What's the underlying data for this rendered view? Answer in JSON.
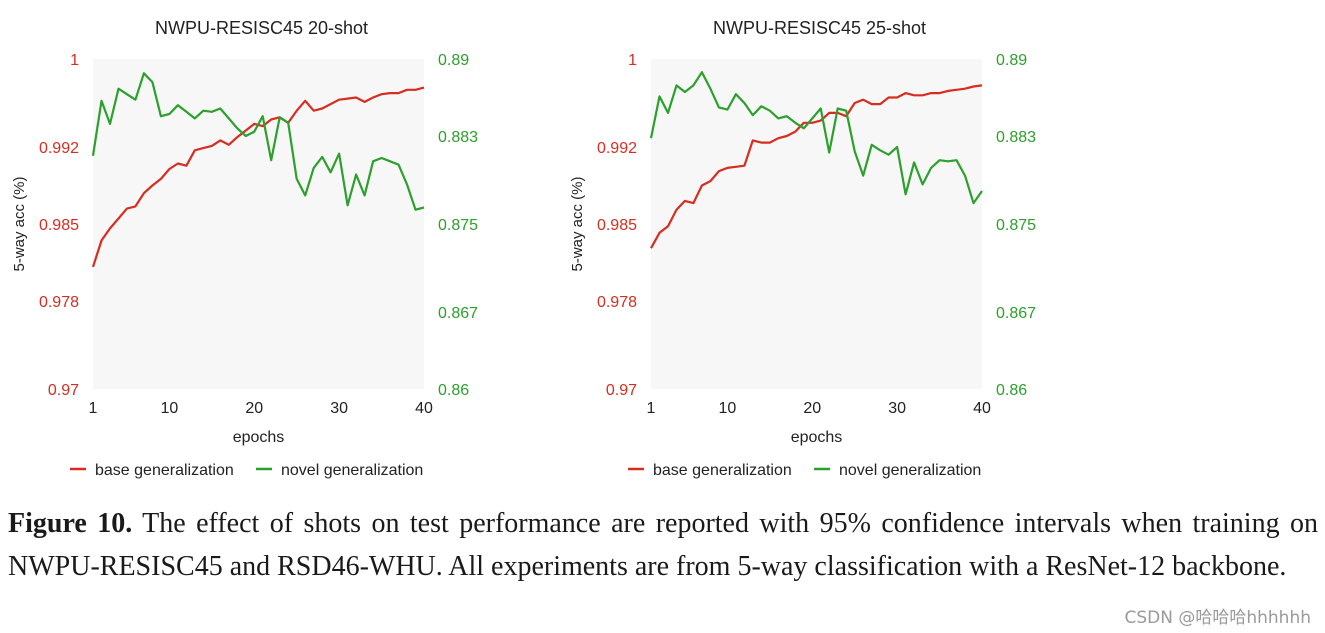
{
  "colors": {
    "base": "#d62d20",
    "novel": "#2ca02c",
    "plot_bg": "#f7f7f7"
  },
  "chart_data": [
    {
      "type": "line",
      "title": "NWPU-RESISC45 20-shot",
      "xlabel": "epochs",
      "ylabel": "5-way acc (%)",
      "xlim": [
        1,
        40
      ],
      "xticks": [
        1,
        10,
        20,
        30,
        40
      ],
      "left_axis": {
        "ylim": [
          0.97,
          1.0
        ],
        "ticks": [
          0.97,
          0.978,
          0.985,
          0.992,
          1.0
        ],
        "tick_labels": [
          "0.97",
          "0.978",
          "0.985",
          "0.992",
          "1"
        ]
      },
      "right_axis": {
        "ylim": [
          0.86,
          0.89
        ],
        "ticks": [
          0.86,
          0.867,
          0.875,
          0.883,
          0.89
        ],
        "tick_labels": [
          "0.86",
          "0.867",
          "0.875",
          "0.883",
          "0.89"
        ]
      },
      "legend": [
        "base generalization",
        "novel generalization"
      ],
      "series": [
        {
          "name": "base generalization",
          "axis": "left",
          "x": [
            1,
            2,
            3,
            4,
            5,
            6,
            7,
            8,
            9,
            10,
            11,
            12,
            13,
            14,
            15,
            16,
            17,
            18,
            19,
            20,
            21,
            22,
            23,
            24,
            25,
            26,
            27,
            28,
            29,
            30,
            31,
            32,
            33,
            34,
            35,
            36,
            37,
            38,
            39,
            40
          ],
          "values": [
            0.9811,
            0.9835,
            0.9846,
            0.9855,
            0.9864,
            0.9866,
            0.9878,
            0.9885,
            0.9891,
            0.99,
            0.9905,
            0.9903,
            0.9917,
            0.9919,
            0.9921,
            0.9926,
            0.9922,
            0.9929,
            0.9935,
            0.9941,
            0.9939,
            0.9945,
            0.9947,
            0.9942,
            0.9953,
            0.9962,
            0.9953,
            0.9955,
            0.9959,
            0.9963,
            0.9964,
            0.9965,
            0.9961,
            0.9965,
            0.9968,
            0.9969,
            0.9969,
            0.9972,
            0.9972,
            0.9974
          ]
        },
        {
          "name": "novel generalization",
          "axis": "right",
          "x": [
            1,
            2,
            3,
            4,
            5,
            6,
            7,
            8,
            9,
            10,
            11,
            12,
            13,
            14,
            15,
            16,
            17,
            18,
            19,
            20,
            21,
            22,
            23,
            24,
            25,
            26,
            27,
            28,
            29,
            30,
            31,
            32,
            33,
            34,
            35,
            36,
            37,
            38,
            39,
            40
          ],
          "values": [
            0.8812,
            0.8862,
            0.8841,
            0.8873,
            0.8868,
            0.8863,
            0.8887,
            0.8879,
            0.8848,
            0.885,
            0.8858,
            0.8852,
            0.8846,
            0.8853,
            0.8852,
            0.8855,
            0.8846,
            0.8837,
            0.883,
            0.8834,
            0.8848,
            0.8808,
            0.8847,
            0.8842,
            0.8791,
            0.8776,
            0.8801,
            0.8811,
            0.8797,
            0.8814,
            0.8767,
            0.8795,
            0.8776,
            0.8807,
            0.881,
            0.8807,
            0.8804,
            0.8786,
            0.8763,
            0.8765
          ]
        }
      ]
    },
    {
      "type": "line",
      "title": "NWPU-RESISC45 25-shot",
      "xlabel": "epochs",
      "ylabel": "5-way acc (%)",
      "xlim": [
        1,
        40
      ],
      "xticks": [
        1,
        10,
        20,
        30,
        40
      ],
      "left_axis": {
        "ylim": [
          0.97,
          1.0
        ],
        "ticks": [
          0.97,
          0.978,
          0.985,
          0.992,
          1.0
        ],
        "tick_labels": [
          "0.97",
          "0.978",
          "0.985",
          "0.992",
          "1"
        ]
      },
      "right_axis": {
        "ylim": [
          0.86,
          0.89
        ],
        "ticks": [
          0.86,
          0.867,
          0.875,
          0.883,
          0.89
        ],
        "tick_labels": [
          "0.86",
          "0.867",
          "0.875",
          "0.883",
          "0.89"
        ]
      },
      "legend": [
        "base generalization",
        "novel generalization"
      ],
      "series": [
        {
          "name": "base generalization",
          "axis": "left",
          "x": [
            1,
            2,
            3,
            4,
            5,
            6,
            7,
            8,
            9,
            10,
            11,
            12,
            13,
            14,
            15,
            16,
            17,
            18,
            19,
            20,
            21,
            22,
            23,
            24,
            25,
            26,
            27,
            28,
            29,
            30,
            31,
            32,
            33,
            34,
            35,
            36,
            37,
            38,
            39,
            40
          ],
          "values": [
            0.9828,
            0.9842,
            0.9848,
            0.9863,
            0.9871,
            0.9869,
            0.9885,
            0.9889,
            0.9898,
            0.9901,
            0.9902,
            0.9903,
            0.9926,
            0.9924,
            0.9924,
            0.9928,
            0.993,
            0.9934,
            0.9942,
            0.9942,
            0.9944,
            0.9951,
            0.9951,
            0.9948,
            0.996,
            0.9963,
            0.9959,
            0.9959,
            0.9965,
            0.9965,
            0.9969,
            0.9967,
            0.9967,
            0.9969,
            0.9969,
            0.9971,
            0.9972,
            0.9973,
            0.9975,
            0.9976
          ]
        },
        {
          "name": "novel generalization",
          "axis": "right",
          "x": [
            1,
            2,
            3,
            4,
            5,
            6,
            7,
            8,
            9,
            10,
            11,
            12,
            13,
            14,
            15,
            16,
            17,
            18,
            19,
            20,
            21,
            22,
            23,
            24,
            25,
            26,
            27,
            28,
            29,
            30,
            31,
            32,
            33,
            34,
            35,
            36,
            37,
            38,
            39,
            40
          ],
          "values": [
            0.8828,
            0.8866,
            0.8851,
            0.8876,
            0.887,
            0.8876,
            0.8888,
            0.8873,
            0.8856,
            0.8854,
            0.8868,
            0.886,
            0.8849,
            0.8857,
            0.8853,
            0.8846,
            0.8848,
            0.8842,
            0.8837,
            0.8846,
            0.8855,
            0.8815,
            0.8855,
            0.8853,
            0.8816,
            0.8794,
            0.8822,
            0.8817,
            0.8813,
            0.882,
            0.8777,
            0.8806,
            0.8786,
            0.8801,
            0.8808,
            0.8807,
            0.8808,
            0.8794,
            0.8769,
            0.878
          ]
        }
      ]
    }
  ],
  "caption": {
    "label": "Figure 10.",
    "text": "The effect of shots on test performance are reported with 95% confidence intervals when training on NWPU-RESISC45 and RSD46-WHU. All experiments are from 5-way classification with a ResNet-12 backbone."
  },
  "watermark": "CSDN @哈哈哈hhhhhh"
}
